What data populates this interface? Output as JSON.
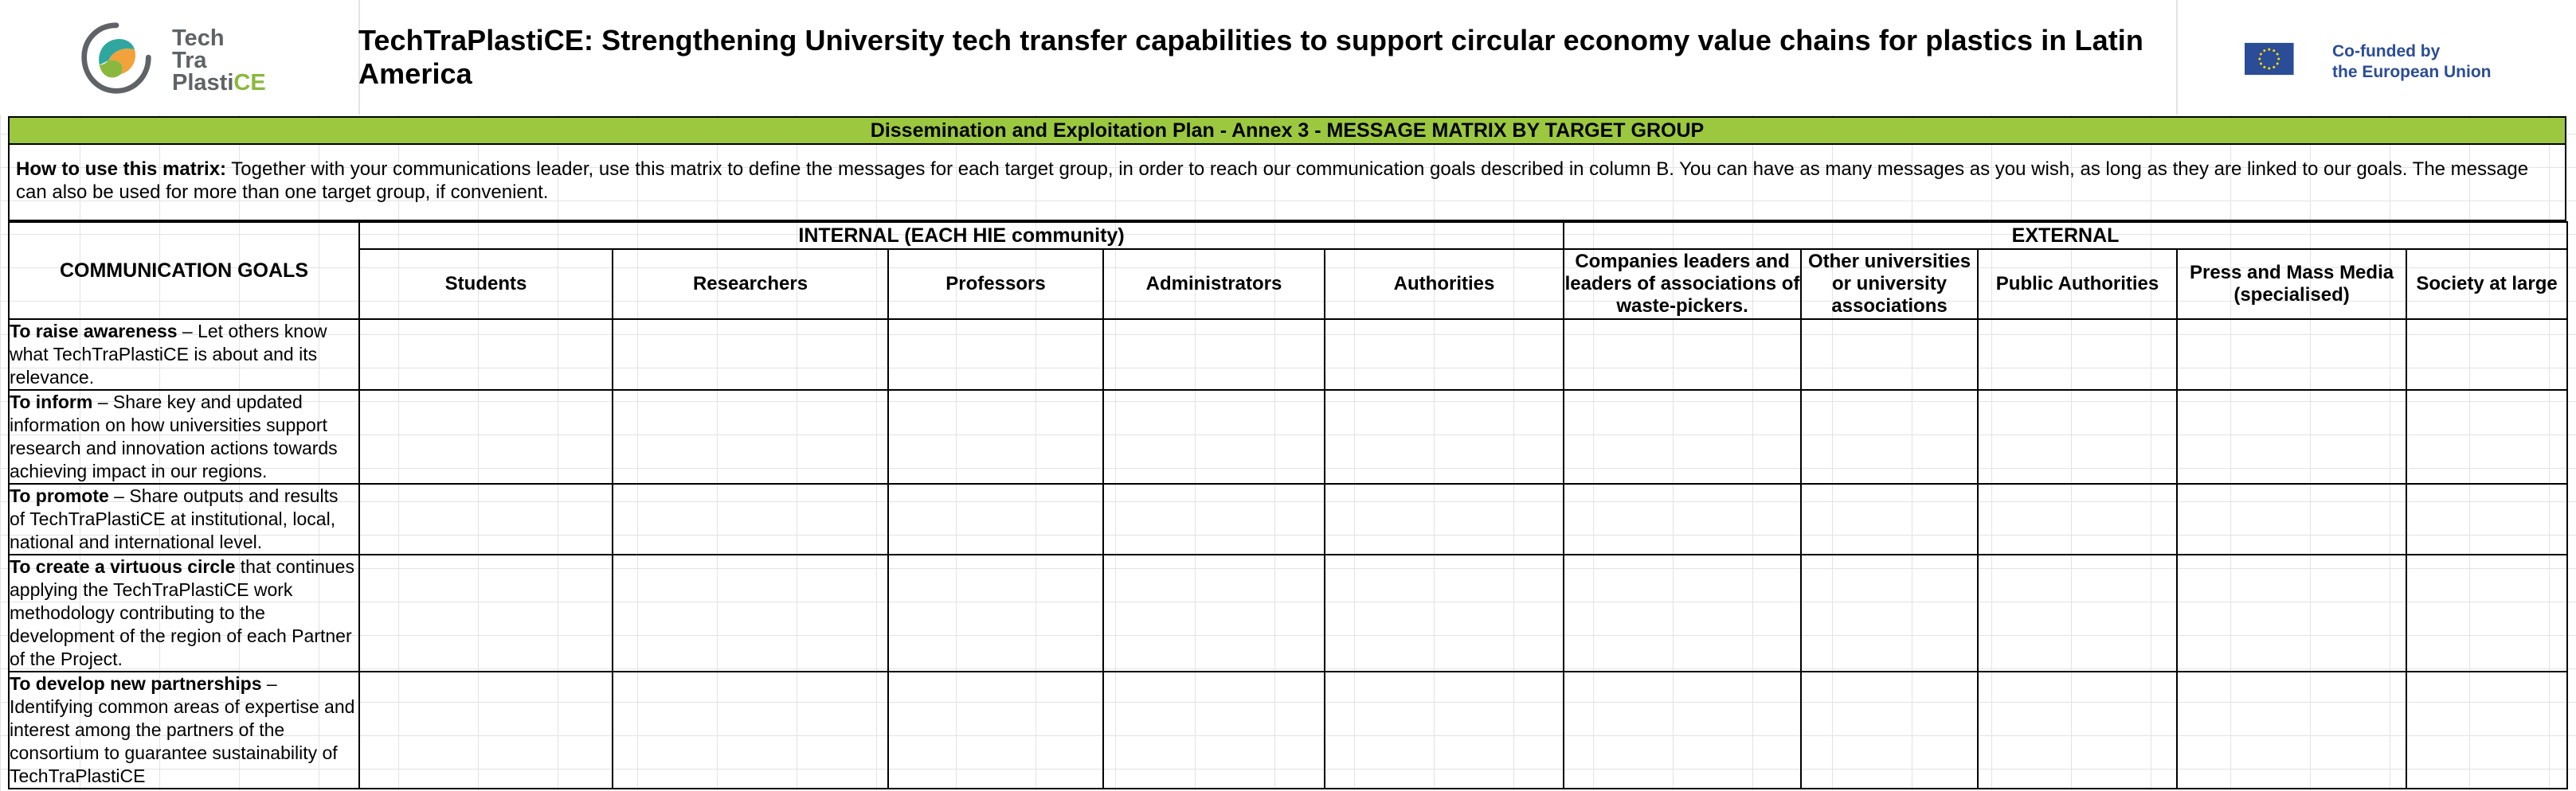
{
  "header": {
    "logo_text": [
      "Tech",
      "Tra",
      "Plasti",
      "CE"
    ],
    "title": "TechTraPlastiCE: Strengthening University tech transfer capabilities to support circular economy value chains for plastics in Latin America",
    "eu_text": [
      "Co-funded by",
      "the European Union"
    ]
  },
  "banner": "Dissemination and Exploitation Plan - Annex 3 - MESSAGE MATRIX BY TARGET GROUP",
  "instructions": {
    "label": "How to use this matrix:",
    "text": " Together with your communications leader, use this matrix to define the messages for each target group, in order to reach our communication goals described in column B. You can have as many messages as you wish, as long as they are linked to our goals. The message can also be used for more than one target group, if convenient."
  },
  "table": {
    "goals_header": "COMMUNICATION GOALS",
    "internal_header": "INTERNAL (EACH HIE community)",
    "external_header": "EXTERNAL",
    "columns": [
      "Students",
      "Researchers",
      "Professors",
      "Administrators",
      "Authorities",
      "Companies leaders and leaders of associations of waste-pickers.",
      "Other universities or university associations",
      "Public Authorities",
      "Press and Mass Media (specialised)",
      "Society at large"
    ],
    "rows": [
      {
        "bold": "To raise awareness",
        "text": " – Let others know what TechTraPlastiCE is about and its relevance."
      },
      {
        "bold": "To inform",
        "text": " – Share key and updated information on how universities support research and innovation actions towards achieving impact in our regions."
      },
      {
        "bold": "To promote",
        "text": " – Share outputs and results of TechTraPlastiCE at institutional, local, national and international level."
      },
      {
        "bold": "To create a virtuous circle",
        "text": " that continues applying the TechTraPlastiCE work methodology contributing to the development of the region of each Partner of the Project."
      },
      {
        "bold": "To develop new partnerships",
        "text": " – Identifying common areas of expertise and interest among the partners of the consortium to guarantee sustainability of TechTraPlastiCE"
      }
    ]
  },
  "colors": {
    "banner": "#9bc83f",
    "logo_green": "#8ab83e",
    "logo_grey": "#5f6266",
    "eu_blue": "#2b4c97",
    "eu_star": "#ffdd00"
  }
}
